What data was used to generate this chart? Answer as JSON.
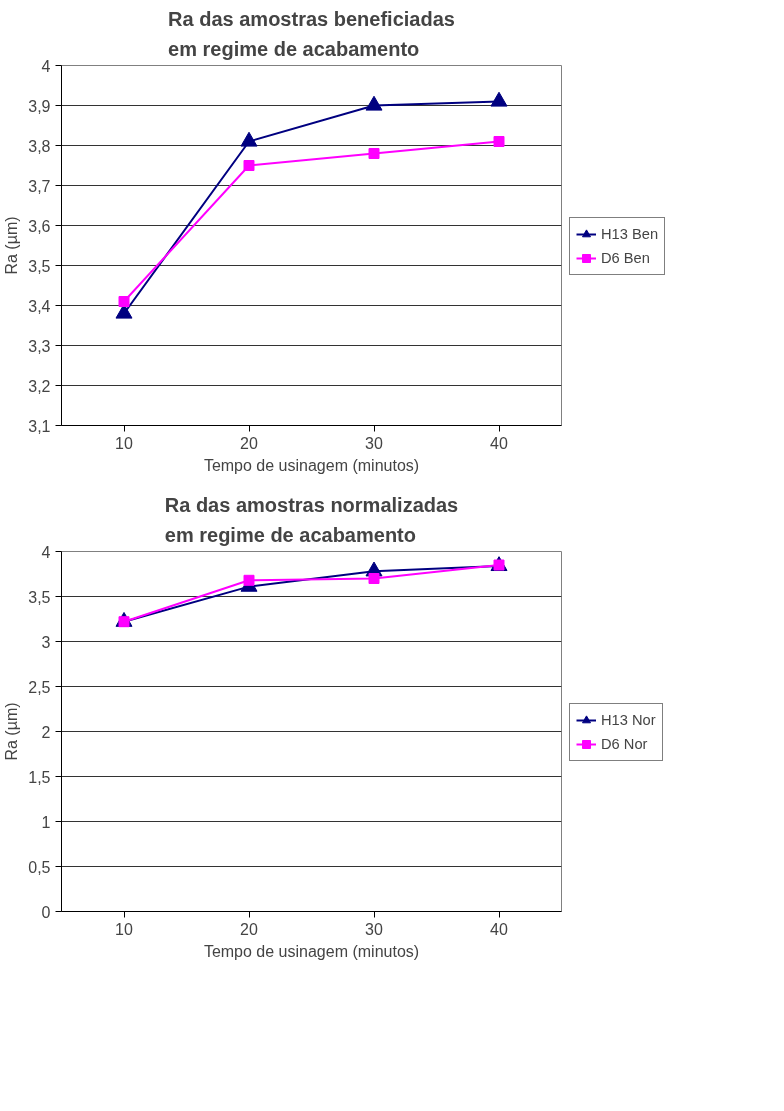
{
  "chart_data": [
    {
      "type": "line",
      "title": "Ra das amostras beneficiadas em regime de acabamento",
      "xlabel": "Tempo de usinagem (minutos)",
      "ylabel": "Ra (µm)",
      "categories": [
        "10",
        "20",
        "30",
        "40"
      ],
      "ylim": [
        3.1,
        4
      ],
      "yticks": [
        {
          "value": 3.1,
          "label": "3,1"
        },
        {
          "value": 3.2,
          "label": "3,2"
        },
        {
          "value": 3.3,
          "label": "3,3"
        },
        {
          "value": 3.4,
          "label": "3,4"
        },
        {
          "value": 3.5,
          "label": "3,5"
        },
        {
          "value": 3.6,
          "label": "3,6"
        },
        {
          "value": 3.7,
          "label": "3,7"
        },
        {
          "value": 3.8,
          "label": "3,8"
        },
        {
          "value": 3.9,
          "label": "3,9"
        },
        4
      ],
      "grid": "y",
      "legend": "right",
      "line_style": "solid",
      "series": [
        {
          "name": "H13 Ben",
          "color": "#000080",
          "marker": "triangle",
          "values": [
            3.38,
            3.81,
            3.9,
            3.91
          ]
        },
        {
          "name": "D6 Ben",
          "color": "#ff00ff",
          "marker": "square",
          "values": [
            3.41,
            3.75,
            3.78,
            3.81
          ]
        }
      ]
    },
    {
      "type": "line",
      "title": "Ra das amostras normalizadas em regime de acabamento",
      "xlabel": "Tempo de usinagem (minutos)",
      "ylabel": "Ra (µm)",
      "categories": [
        "10",
        "20",
        "30",
        "40"
      ],
      "ylim": [
        0,
        4
      ],
      "yticks": [
        0,
        {
          "value": 0.5,
          "label": "0,5"
        },
        1,
        {
          "value": 1.5,
          "label": "1,5"
        },
        2,
        {
          "value": 2.5,
          "label": "2,5"
        },
        3,
        {
          "value": 3.5,
          "label": "3,5"
        },
        4
      ],
      "grid": "y",
      "legend": "right",
      "line_style": "solid",
      "series": [
        {
          "name": "H13 Nor",
          "color": "#000080",
          "marker": "triangle",
          "values": [
            3.22,
            3.61,
            3.78,
            3.84
          ]
        },
        {
          "name": "D6 Nor",
          "color": "#ff00ff",
          "marker": "square",
          "values": [
            3.22,
            3.68,
            3.7,
            3.85
          ]
        }
      ]
    }
  ]
}
